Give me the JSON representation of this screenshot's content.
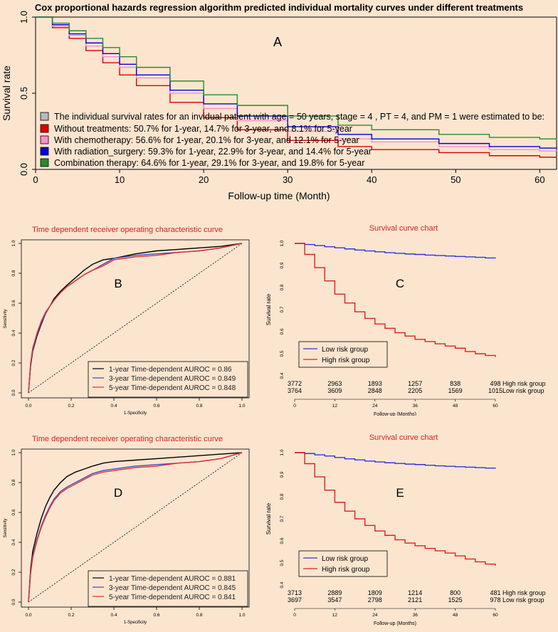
{
  "chart_data": [
    {
      "id": "A",
      "type": "line",
      "title": "Cox proportional hazards regression algorithm predicted individual mortality curves under different treatments",
      "panel_label": "A",
      "xlabel": "Follow-up time (Month)",
      "ylabel": "Survival rate",
      "xlim": [
        0,
        62
      ],
      "ylim": [
        0,
        1.0
      ],
      "xticks": [
        0,
        10,
        20,
        30,
        40,
        50,
        60
      ],
      "yticks": [
        0,
        0.5,
        1.0
      ],
      "ytick_labels": [
        "0.0",
        "0.5",
        "1.0"
      ],
      "legend_header": "The individual survival rates for an invidual patient with age = 50 years, stage = 4 , PT = 4, and PM = 1 were estimated to be:",
      "legend_header_color": "#b8b8c0",
      "x": [
        0,
        2,
        4,
        6,
        8,
        10,
        12,
        16,
        20,
        24,
        30,
        36,
        40,
        48,
        54,
        60,
        62
      ],
      "series": [
        {
          "name": "Without treatments: 50.7% for 1-year, 14.7% for 3-year, and 8.1% for 5-year",
          "color": "#dd0000",
          "values": [
            1.0,
            0.93,
            0.86,
            0.78,
            0.7,
            0.62,
            0.55,
            0.44,
            0.34,
            0.26,
            0.19,
            0.15,
            0.13,
            0.11,
            0.09,
            0.08,
            0.08
          ]
        },
        {
          "name": "With chemotherapy:  56.6% for 1-year, 20.1% for 3-year, and 12.1% for 5-year",
          "color": "#ff8ecf",
          "values": [
            1.0,
            0.94,
            0.88,
            0.81,
            0.74,
            0.67,
            0.6,
            0.5,
            0.4,
            0.32,
            0.25,
            0.2,
            0.18,
            0.15,
            0.13,
            0.12,
            0.12
          ]
        },
        {
          "name": "With radiation_surgery:  59.3% for 1-year, 22.9% for 3-year, and 14.4% for 5-year",
          "color": "#0000dd",
          "values": [
            1.0,
            0.95,
            0.89,
            0.83,
            0.76,
            0.69,
            0.62,
            0.52,
            0.43,
            0.35,
            0.28,
            0.23,
            0.2,
            0.17,
            0.15,
            0.14,
            0.14
          ]
        },
        {
          "name": "Combination therapy:  64.6% for 1-year, 29.1% for 3-year, and 19.8% for 5-year",
          "color": "#2a8a2a",
          "values": [
            1.0,
            0.96,
            0.91,
            0.86,
            0.8,
            0.74,
            0.67,
            0.58,
            0.49,
            0.42,
            0.35,
            0.29,
            0.26,
            0.23,
            0.21,
            0.2,
            0.19
          ]
        }
      ]
    },
    {
      "id": "B",
      "type": "line",
      "title": "Time dependent receiver operating characteristic curve",
      "panel_label": "B",
      "xlabel": "1-Specificity",
      "ylabel": "Sensitivity",
      "xlim": [
        0,
        1
      ],
      "ylim": [
        0,
        1
      ],
      "xticks": [
        0,
        0.2,
        0.4,
        0.6,
        0.8,
        1.0
      ],
      "xtick_labels": [
        "0.0",
        "0.2",
        "0.4",
        "0.6",
        "0.8",
        "1.0"
      ],
      "yticks": [
        0,
        0.2,
        0.4,
        0.6,
        0.8,
        1.0
      ],
      "ytick_labels": [
        "0.0",
        "0.2",
        "0.4",
        "0.6",
        "0.8",
        "1.0"
      ],
      "x": [
        0,
        0.01,
        0.02,
        0.04,
        0.06,
        0.08,
        0.1,
        0.12,
        0.15,
        0.18,
        0.22,
        0.26,
        0.3,
        0.35,
        0.4,
        0.5,
        0.6,
        0.7,
        0.8,
        0.9,
        1.0
      ],
      "series": [
        {
          "name": "1-year Time-dependent AUROC = 0.86",
          "color": "#000000",
          "values": [
            0,
            0.18,
            0.28,
            0.38,
            0.46,
            0.53,
            0.58,
            0.63,
            0.68,
            0.72,
            0.77,
            0.82,
            0.86,
            0.89,
            0.9,
            0.93,
            0.95,
            0.96,
            0.97,
            0.98,
            1.0
          ]
        },
        {
          "name": "3-year Time-dependent AUROC = 0.849",
          "color": "#4444cc",
          "values": [
            0,
            0.19,
            0.29,
            0.39,
            0.47,
            0.53,
            0.58,
            0.62,
            0.67,
            0.71,
            0.75,
            0.79,
            0.82,
            0.86,
            0.9,
            0.92,
            0.93,
            0.94,
            0.95,
            0.97,
            1.0
          ]
        },
        {
          "name": "5-year Time-dependent AUROC = 0.848",
          "color": "#dd3333",
          "values": [
            0,
            0.2,
            0.3,
            0.4,
            0.48,
            0.54,
            0.58,
            0.62,
            0.67,
            0.71,
            0.75,
            0.79,
            0.82,
            0.85,
            0.89,
            0.91,
            0.92,
            0.94,
            0.95,
            0.97,
            1.0
          ]
        }
      ]
    },
    {
      "id": "C",
      "type": "line",
      "title": "Survival curve chart",
      "panel_label": "C",
      "xlabel": "Follow-up (Months)",
      "ylabel": "Survival rate",
      "xlim": [
        0,
        60
      ],
      "ylim": [
        0.4,
        1.0
      ],
      "xticks": [
        0,
        12,
        24,
        36,
        48,
        60
      ],
      "yticks": [
        0.4,
        0.5,
        0.6,
        0.7,
        0.8,
        0.9,
        1.0
      ],
      "ytick_labels": [
        "0.4",
        "0.5",
        "0.6",
        "0.7",
        "0.8",
        "0.9",
        "1.0"
      ],
      "x": [
        0,
        3,
        6,
        9,
        12,
        15,
        18,
        21,
        24,
        27,
        30,
        33,
        36,
        39,
        42,
        45,
        48,
        51,
        54,
        57,
        60
      ],
      "series": [
        {
          "name": "Low risk group",
          "color": "#3333dd",
          "values": [
            1.0,
            0.995,
            0.99,
            0.985,
            0.98,
            0.975,
            0.97,
            0.966,
            0.962,
            0.958,
            0.955,
            0.952,
            0.95,
            0.947,
            0.945,
            0.943,
            0.941,
            0.939,
            0.937,
            0.934,
            0.932
          ]
        },
        {
          "name": "High risk group",
          "color": "#dd2222",
          "values": [
            1.0,
            0.95,
            0.89,
            0.83,
            0.77,
            0.73,
            0.69,
            0.66,
            0.635,
            0.615,
            0.595,
            0.58,
            0.565,
            0.555,
            0.545,
            0.535,
            0.525,
            0.51,
            0.5,
            0.492,
            0.485
          ]
        }
      ],
      "risk_table": {
        "times": [
          0,
          12,
          24,
          36,
          48,
          60
        ],
        "rows": [
          {
            "label": "High risk group",
            "counts": [
              "3772",
              "2963",
              "1893",
              "1257",
              "838",
              "498"
            ]
          },
          {
            "label": "Low risk group",
            "counts": [
              "3764",
              "3609",
              "2848",
              "2205",
              "1569",
              "1015"
            ]
          }
        ]
      }
    },
    {
      "id": "D",
      "type": "line",
      "title": "Time dependent receiver operating characteristic curve",
      "panel_label": "D",
      "xlabel": "1-Specificity",
      "ylabel": "Sensitivity",
      "xlim": [
        0,
        1
      ],
      "ylim": [
        0,
        1
      ],
      "xticks": [
        0,
        0.2,
        0.4,
        0.6,
        0.8,
        1.0
      ],
      "xtick_labels": [
        "0.0",
        "0.2",
        "0.4",
        "0.6",
        "0.8",
        "1.0"
      ],
      "yticks": [
        0,
        0.2,
        0.4,
        0.6,
        0.8,
        1.0
      ],
      "ytick_labels": [
        "0.0",
        "0.2",
        "0.4",
        "0.6",
        "0.8",
        "1.0"
      ],
      "x": [
        0,
        0.01,
        0.02,
        0.04,
        0.06,
        0.08,
        0.1,
        0.12,
        0.15,
        0.18,
        0.22,
        0.26,
        0.3,
        0.35,
        0.4,
        0.5,
        0.6,
        0.7,
        0.8,
        0.9,
        1.0
      ],
      "series": [
        {
          "name": "1-year Time-dependent AUROC = 0.881",
          "color": "#000000",
          "values": [
            0,
            0.22,
            0.34,
            0.46,
            0.56,
            0.64,
            0.7,
            0.75,
            0.8,
            0.84,
            0.87,
            0.89,
            0.91,
            0.93,
            0.94,
            0.95,
            0.96,
            0.97,
            0.98,
            0.99,
            1.0
          ]
        },
        {
          "name": "3-year Time-dependent AUROC = 0.845",
          "color": "#4444cc",
          "values": [
            0,
            0.2,
            0.31,
            0.42,
            0.51,
            0.58,
            0.64,
            0.69,
            0.74,
            0.77,
            0.8,
            0.83,
            0.86,
            0.88,
            0.89,
            0.91,
            0.92,
            0.93,
            0.94,
            0.96,
            1.0
          ]
        },
        {
          "name": "5-year Time-dependent AUROC = 0.841",
          "color": "#dd3333",
          "values": [
            0,
            0.19,
            0.3,
            0.41,
            0.5,
            0.57,
            0.63,
            0.68,
            0.73,
            0.76,
            0.79,
            0.82,
            0.85,
            0.87,
            0.88,
            0.9,
            0.91,
            0.93,
            0.94,
            0.96,
            1.0
          ]
        }
      ]
    },
    {
      "id": "E",
      "type": "line",
      "title": "Survival curve chart",
      "panel_label": "E",
      "xlabel": "Follow-up (Months)",
      "ylabel": "Survival rate",
      "xlim": [
        0,
        60
      ],
      "ylim": [
        0.4,
        1.0
      ],
      "xticks": [
        0,
        12,
        24,
        36,
        48,
        60
      ],
      "yticks": [
        0.4,
        0.5,
        0.6,
        0.7,
        0.8,
        0.9,
        1.0
      ],
      "ytick_labels": [
        "0.4",
        "0.5",
        "0.6",
        "0.7",
        "0.8",
        "0.9",
        "1.0"
      ],
      "x": [
        0,
        3,
        6,
        9,
        12,
        15,
        18,
        21,
        24,
        27,
        30,
        33,
        36,
        39,
        42,
        45,
        48,
        51,
        54,
        57,
        60
      ],
      "series": [
        {
          "name": "Low risk group",
          "color": "#3333dd",
          "values": [
            1.0,
            0.996,
            0.99,
            0.985,
            0.978,
            0.972,
            0.967,
            0.962,
            0.958,
            0.954,
            0.951,
            0.948,
            0.946,
            0.943,
            0.94,
            0.938,
            0.936,
            0.934,
            0.932,
            0.93,
            0.928
          ]
        },
        {
          "name": "High risk group",
          "color": "#dd2222",
          "values": [
            1.0,
            0.95,
            0.89,
            0.83,
            0.775,
            0.735,
            0.7,
            0.67,
            0.645,
            0.625,
            0.605,
            0.59,
            0.578,
            0.566,
            0.555,
            0.545,
            0.532,
            0.518,
            0.505,
            0.495,
            0.488
          ]
        }
      ],
      "risk_table": {
        "times": [
          0,
          12,
          24,
          36,
          48,
          60
        ],
        "rows": [
          {
            "label": "High risk group",
            "counts": [
              "3713",
              "2889",
              "1809",
              "1214",
              "800",
              "481"
            ]
          },
          {
            "label": "Low risk group",
            "counts": [
              "3697",
              "3547",
              "2798",
              "2121",
              "1525",
              "978"
            ]
          }
        ]
      }
    }
  ]
}
